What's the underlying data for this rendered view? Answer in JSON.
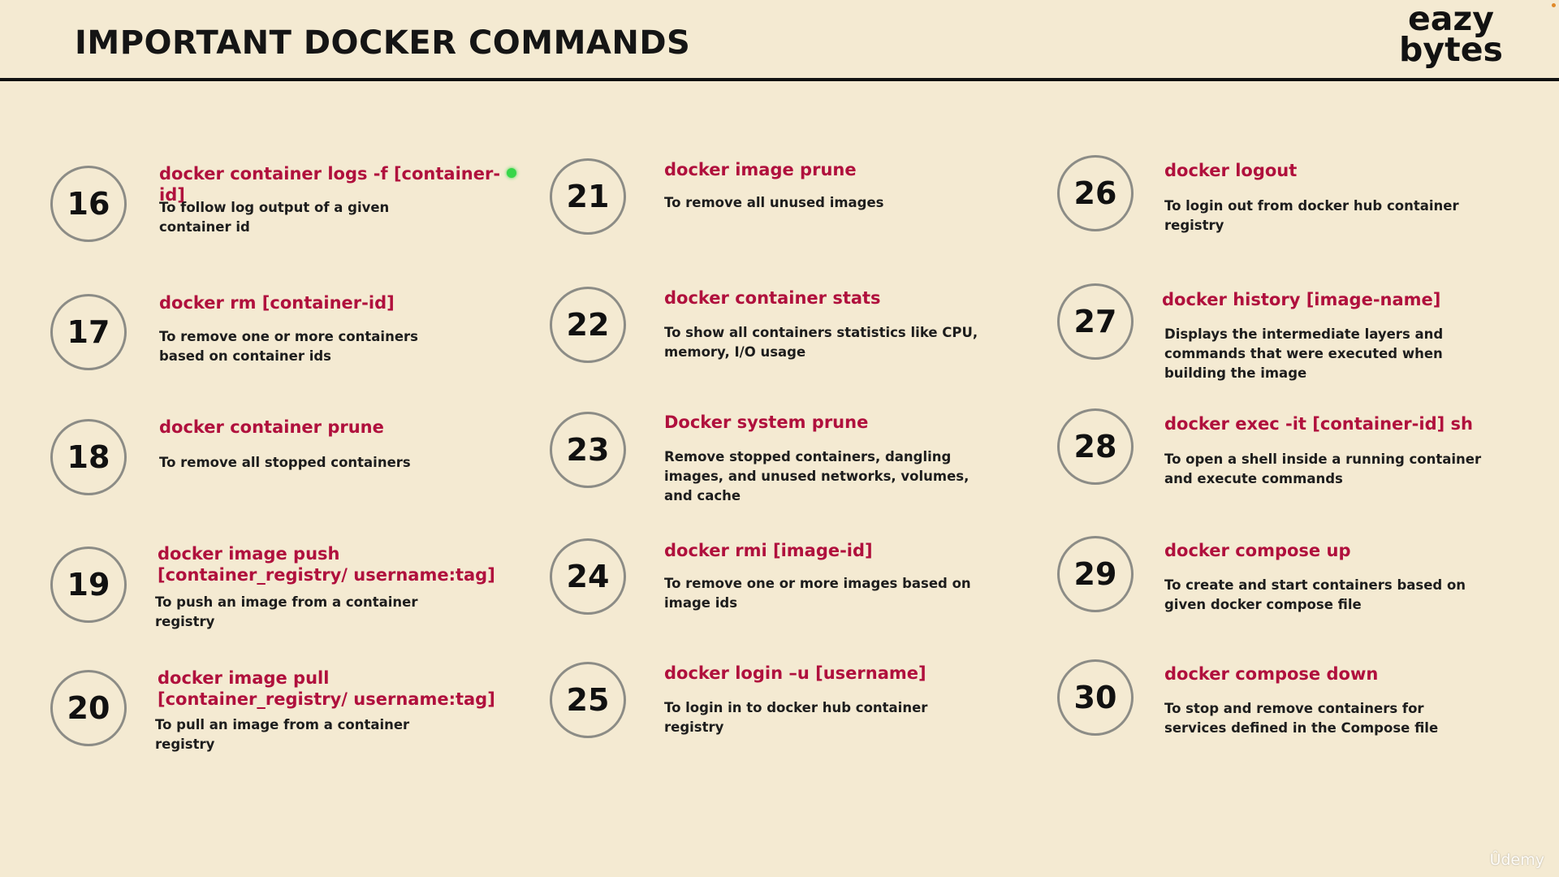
{
  "header": {
    "title": "IMPORTANT DOCKER COMMANDS",
    "logo_line1": "eazy",
    "logo_line2": "bytes"
  },
  "commands": [
    {
      "num": "16",
      "cmd": "docker container logs -f [container-id]",
      "desc": "To follow log output of a given container id"
    },
    {
      "num": "17",
      "cmd": "docker rm [container-id]",
      "desc": "To remove one or more containers based on container ids"
    },
    {
      "num": "18",
      "cmd": "docker container prune",
      "desc": "To remove all stopped containers"
    },
    {
      "num": "19",
      "cmd": "docker image push [container_registry/ username:tag]",
      "desc": "To push an image from a container registry"
    },
    {
      "num": "20",
      "cmd": "docker image pull [container_registry/ username:tag]",
      "desc": "To pull an image from a container registry"
    },
    {
      "num": "21",
      "cmd": "docker image prune",
      "desc": "To remove all unused images"
    },
    {
      "num": "22",
      "cmd": "docker container stats",
      "desc": "To show all containers statistics like CPU, memory, I/O usage"
    },
    {
      "num": "23",
      "cmd": "Docker system prune",
      "desc": "Remove stopped containers, dangling images, and unused networks, volumes, and cache"
    },
    {
      "num": "24",
      "cmd": "docker rmi [image-id]",
      "desc": "To remove one or more images based on image ids"
    },
    {
      "num": "25",
      "cmd": "docker login –u [username]",
      "desc": "To login in to docker hub container registry"
    },
    {
      "num": "26",
      "cmd": "docker logout",
      "desc": "To login out from docker hub container registry"
    },
    {
      "num": "27",
      "cmd": "docker history [image-name]",
      "desc": "Displays the intermediate layers and commands that were executed when building the image"
    },
    {
      "num": "28",
      "cmd": "docker exec -it [container-id] sh",
      "desc": "To open a shell inside a running container and execute commands"
    },
    {
      "num": "29",
      "cmd": "docker compose up",
      "desc": "To create and start containers based on given docker compose file"
    },
    {
      "num": "30",
      "cmd": "docker compose down",
      "desc": "To stop and remove containers for services defined in the Compose file"
    }
  ],
  "watermark": "Ûdemy",
  "colors": {
    "background": "#f4ead2",
    "command_text": "#b0103d",
    "circle_border": "#8c8c86",
    "status_dot": "#37d64a"
  }
}
